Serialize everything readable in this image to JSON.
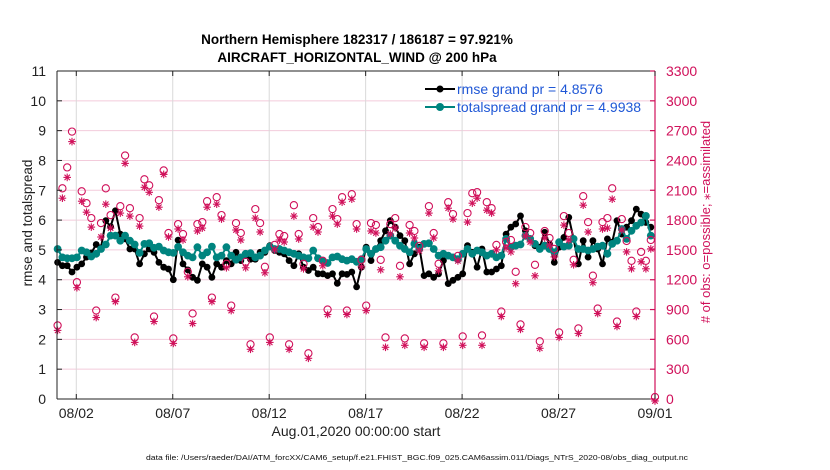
{
  "chart_data": {
    "type": "line",
    "title": [
      "Northern Hemisphere 182317 / 186187 = 97.921%",
      "AIRCRAFT_HORIZONTAL_WIND @ 200 hPa"
    ],
    "xlabel": "Aug.01,2020 00:00:00 start",
    "ylabel": "rmse and totalspread",
    "y2label": "# of obs: o=possible; ⁎=assimilated",
    "x_range_days": [
      0,
      31
    ],
    "x_ticks": [
      {
        "day": 1,
        "label": "08/02"
      },
      {
        "day": 6,
        "label": "08/07"
      },
      {
        "day": 11,
        "label": "08/12"
      },
      {
        "day": 16,
        "label": "08/17"
      },
      {
        "day": 21,
        "label": "08/22"
      },
      {
        "day": 26,
        "label": "08/27"
      },
      {
        "day": 31,
        "label": "09/01"
      }
    ],
    "ylim": [
      0,
      11
    ],
    "y_ticks": [
      0,
      1,
      2,
      3,
      4,
      5,
      6,
      7,
      8,
      9,
      10,
      11
    ],
    "y2lim": [
      0,
      3300
    ],
    "y2_ticks": [
      0,
      300,
      600,
      900,
      1200,
      1500,
      1800,
      2100,
      2400,
      2700,
      3000,
      3300
    ],
    "grid": true,
    "legend_position": "top-right",
    "time_step_hours": 6,
    "series": [
      {
        "name": "rmse",
        "legend": "rmse grand pr = 4.8576",
        "color": "#000000",
        "values": [
          4.58,
          4.47,
          4.47,
          4.26,
          4.42,
          4.53,
          4.76,
          4.9,
          5.18,
          5.07,
          5.98,
          5.78,
          6.31,
          5.53,
          5.37,
          5.03,
          5.03,
          4.53,
          4.87,
          5.03,
          4.92,
          4.58,
          4.42,
          4.36,
          4.0,
          5.33,
          4.53,
          4.33,
          4.08,
          3.98,
          4.53,
          4.42,
          4.08,
          4.53,
          4.42,
          4.64,
          4.53,
          4.92,
          4.64,
          4.81,
          4.69,
          4.69,
          4.92,
          4.92,
          5.14,
          4.98,
          4.92,
          4.87,
          4.64,
          4.47,
          4.87,
          4.42,
          4.31,
          4.42,
          4.2,
          4.2,
          4.14,
          4.2,
          3.88,
          4.2,
          4.18,
          4.26,
          3.76,
          4.42,
          5.09,
          4.64,
          5.03,
          5.31,
          5.64,
          5.98,
          5.76,
          5.48,
          5.31,
          4.53,
          4.87,
          5.09,
          4.14,
          4.2,
          4.08,
          4.2,
          4.64,
          3.87,
          3.98,
          4.08,
          4.2,
          5.14,
          4.92,
          4.42,
          5.03,
          4.26,
          4.26,
          4.36,
          4.47,
          5.53,
          5.76,
          5.87,
          6.14,
          5.64,
          5.37,
          5.14,
          5.09,
          5.59,
          5.2,
          4.58,
          5.09,
          5.42,
          6.09,
          5.37,
          4.53,
          5.31,
          4.76,
          5.31,
          5.03,
          4.53,
          5.37,
          5.26,
          5.98,
          5.53,
          5.76,
          5.98,
          6.37,
          6.2,
          5.92,
          5.76
        ]
      },
      {
        "name": "totalspread",
        "legend": "totalspread grand pr = 4.9938",
        "color": "#00847f",
        "values": [
          5.03,
          4.75,
          4.72,
          4.72,
          4.75,
          4.98,
          4.92,
          4.78,
          4.87,
          5.03,
          5.18,
          5.48,
          5.48,
          5.31,
          5.48,
          5.31,
          5.18,
          4.9,
          5.2,
          5.22,
          5.07,
          5.11,
          4.98,
          4.92,
          4.9,
          5.1,
          4.92,
          4.81,
          4.75,
          5.09,
          4.81,
          4.92,
          5.11,
          4.75,
          4.81,
          5.09,
          4.81,
          4.67,
          4.75,
          4.87,
          4.89,
          4.75,
          4.81,
          4.98,
          5.11,
          5.03,
          5.03,
          4.98,
          4.92,
          4.87,
          4.81,
          4.75,
          4.72,
          4.98,
          4.72,
          4.64,
          4.56,
          4.75,
          4.78,
          4.69,
          4.64,
          4.69,
          4.6,
          4.69,
          5.03,
          4.87,
          5.03,
          5.09,
          5.31,
          5.48,
          5.31,
          5.14,
          5.03,
          4.92,
          5.2,
          5.03,
          5.2,
          5.22,
          5.03,
          4.81,
          4.87,
          4.81,
          4.75,
          4.69,
          4.87,
          5.03,
          4.87,
          4.98,
          4.92,
          4.81,
          4.87,
          4.75,
          4.81,
          5.37,
          5.09,
          5.14,
          5.18,
          5.48,
          5.37,
          5.2,
          5.03,
          5.14,
          5.03,
          4.92,
          5.26,
          5.11,
          5.14,
          5.37,
          5.03,
          5.03,
          4.98,
          5.03,
          5.11,
          5.14,
          4.87,
          5.2,
          5.31,
          5.7,
          5.37,
          5.64,
          5.81,
          5.92,
          6.14,
          5.48
        ]
      }
    ],
    "obs": {
      "color": "#d0105a",
      "possible": [
        720,
        2100,
        2310,
        2670,
        1155,
        2070,
        1950,
        1800,
        870,
        1750,
        2100,
        1830,
        1000,
        1920,
        2430,
        1900,
        600,
        1800,
        2190,
        2130,
        810,
        1980,
        2280,
        1650,
        590,
        1740,
        1640,
        1260,
        840,
        1740,
        1760,
        1970,
        1000,
        2010,
        1830,
        1340,
        920,
        1750,
        1650,
        1360,
        530,
        1890,
        1750,
        1310,
        600,
        1530,
        1640,
        1620,
        530,
        1930,
        1640,
        1340,
        440,
        1800,
        1710,
        1370,
        880,
        1890,
        1790,
        2010,
        870,
        2040,
        1740,
        1380,
        920,
        1750,
        1730,
        1380,
        600,
        1740,
        1800,
        1320,
        590,
        1730,
        1670,
        1520,
        540,
        1920,
        1650,
        1340,
        540,
        1960,
        1840,
        1420,
        610,
        1850,
        2050,
        2060,
        620,
        1960,
        1900,
        1530,
        860,
        1560,
        1580,
        1260,
        730,
        1710,
        1650,
        1330,
        560,
        1670,
        1600,
        1490,
        650,
        1820,
        1650,
        1380,
        690,
        2020,
        1760,
        1220,
        890,
        1760,
        1800,
        2100,
        760,
        1790,
        1570,
        1370,
        860,
        1460,
        1370,
        1580,
        0
      ],
      "assimilated": [
        710,
        2040,
        2250,
        2610,
        1140,
        2010,
        1900,
        1750,
        840,
        1650,
        1980,
        1740,
        1000,
        1890,
        2390,
        1860,
        590,
        1760,
        2150,
        2100,
        800,
        1950,
        2280,
        1650,
        580,
        1730,
        1620,
        1250,
        780,
        1710,
        1740,
        1950,
        1000,
        1980,
        1830,
        1340,
        910,
        1720,
        1620,
        1340,
        520,
        1840,
        1700,
        1290,
        590,
        1520,
        1620,
        1600,
        520,
        1860,
        1630,
        1330,
        430,
        1750,
        1700,
        1360,
        870,
        1860,
        1780,
        2000,
        870,
        2030,
        1730,
        1350,
        910,
        1710,
        1690,
        1320,
        540,
        1680,
        1740,
        1250,
        560,
        1690,
        1640,
        1510,
        540,
        1890,
        1640,
        1310,
        540,
        1940,
        1830,
        1410,
        560,
        1800,
        1990,
        2040,
        560,
        1920,
        1890,
        1520,
        850,
        1540,
        1500,
        1180,
        720,
        1660,
        1600,
        1260,
        530,
        1640,
        1570,
        1450,
        640,
        1770,
        1620,
        1370,
        680,
        1970,
        1700,
        1190,
        880,
        1730,
        1740,
        2030,
        750,
        1720,
        1500,
        1330,
        850,
        1400,
        1330,
        1530,
        0
      ]
    },
    "footer": "data file: /Users/raeder/DAI/ATM_forcXX/CAM6_setup/f.e21.FHIST_BGC.f09_025.CAM6assim.011/Diags_NTrS_2020-08/obs_diag_output.nc"
  }
}
